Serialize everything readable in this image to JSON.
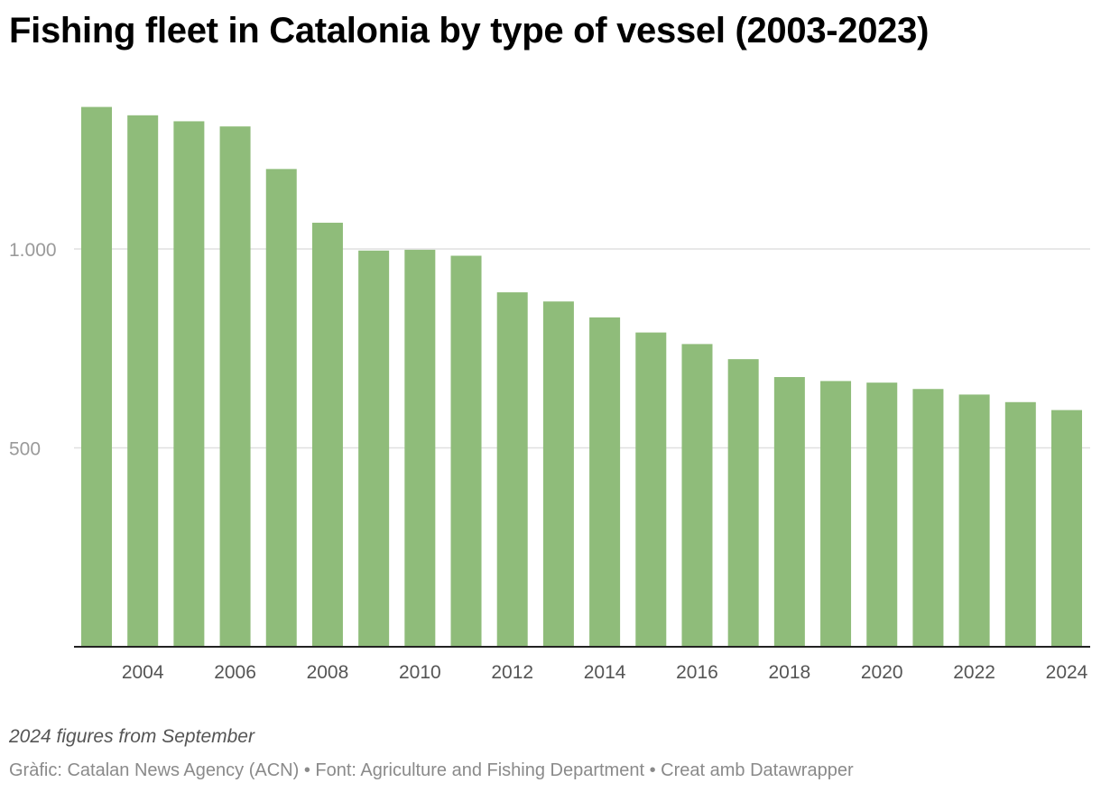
{
  "title": "Fishing fleet in Catalonia by type of vessel (2003-2023)",
  "note": "2024 figures from September",
  "footer": {
    "graphic_label": "Gràfic:",
    "graphic": "Catalan News Agency (ACN)",
    "source_label": "Font:",
    "source": "Agriculture and Fishing Department",
    "credit": "Creat amb Datawrapper",
    "separator": "•"
  },
  "colors": {
    "bar": "#8fbc7a",
    "grid": "#e0e0e0",
    "axis": "#222222"
  },
  "chart_data": {
    "type": "bar",
    "title": "Fishing fleet in Catalonia by type of vessel (2003-2023)",
    "categories": [
      "2003",
      "2004",
      "2005",
      "2006",
      "2007",
      "2008",
      "2009",
      "2010",
      "2011",
      "2012",
      "2013",
      "2014",
      "2015",
      "2016",
      "2017",
      "2018",
      "2019",
      "2020",
      "2021",
      "2022",
      "2023",
      "2024"
    ],
    "values": [
      1357,
      1336,
      1321,
      1308,
      1201,
      1066,
      996,
      998,
      983,
      891,
      868,
      828,
      790,
      761,
      723,
      678,
      668,
      664,
      648,
      634,
      615,
      595
    ],
    "ylim": [
      0,
      1400
    ],
    "yticks": [
      500,
      1000
    ],
    "ytick_labels": [
      "500",
      "1.000"
    ],
    "xtick_labels": [
      "2004",
      "2006",
      "2008",
      "2010",
      "2012",
      "2014",
      "2016",
      "2018",
      "2020",
      "2022",
      "2024"
    ],
    "xlabel": "",
    "ylabel": "",
    "grid": true
  }
}
